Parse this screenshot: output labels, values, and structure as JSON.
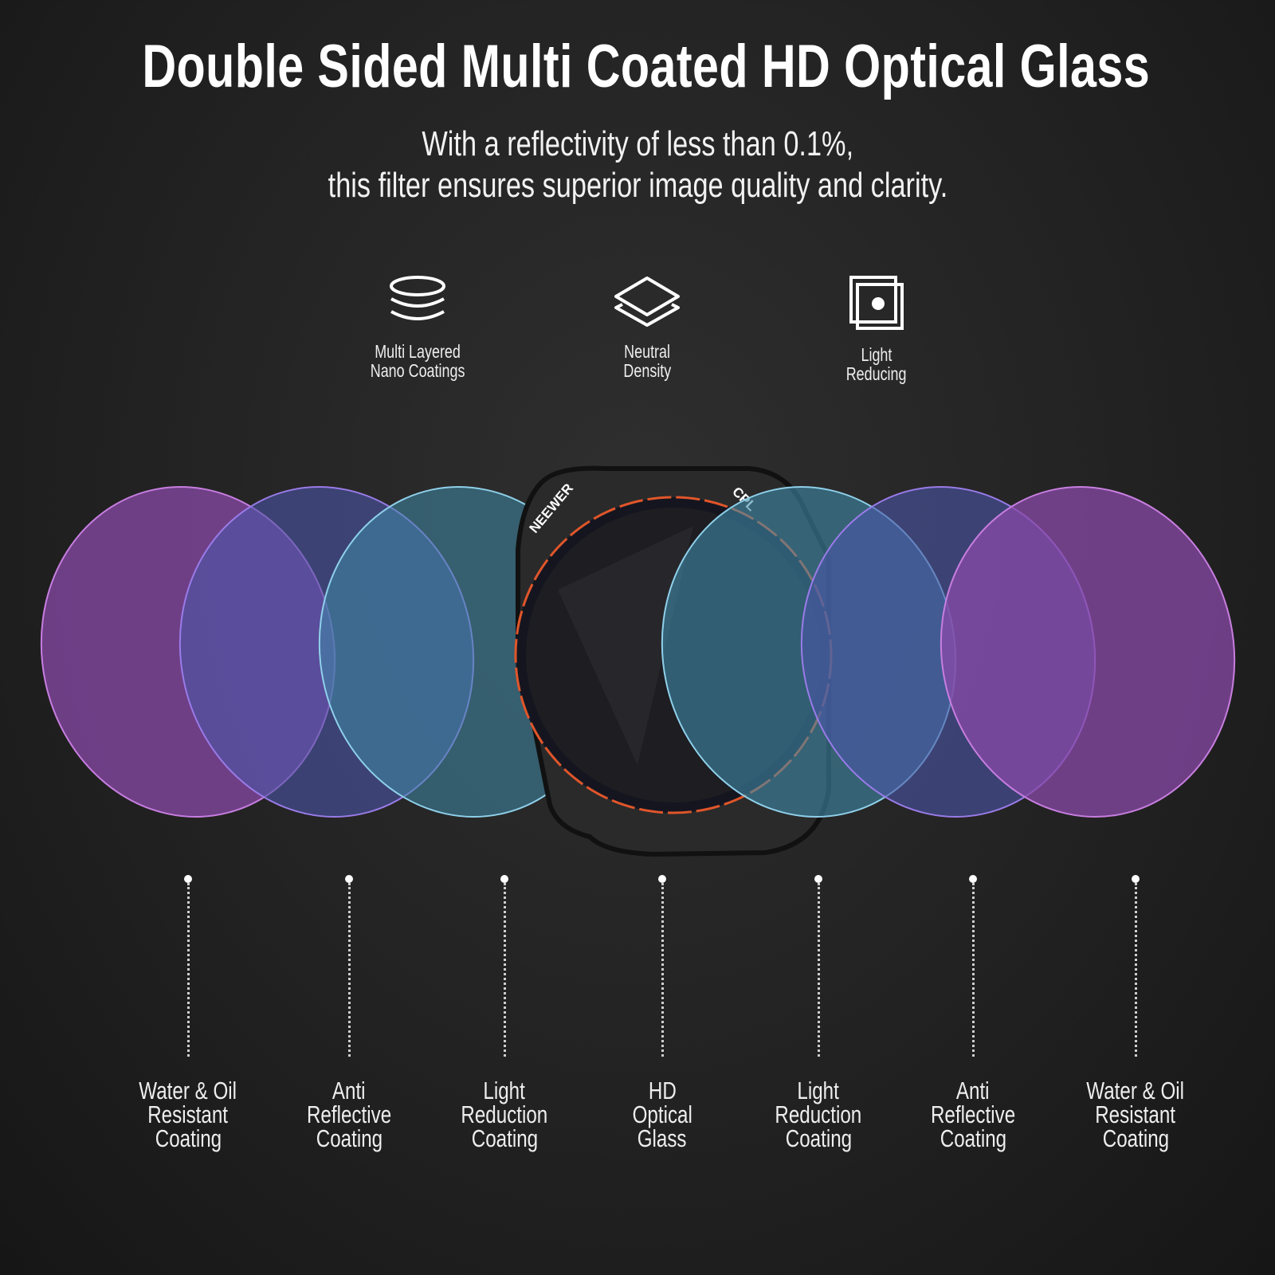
{
  "header": {
    "title": "Double Sided Multi Coated HD Optical Glass",
    "subtitle_line1": "With a reflectivity of less than 0.1%,",
    "subtitle_line2": "this filter ensures superior image quality and clarity."
  },
  "features": [
    {
      "icon": "stacked-discs-icon",
      "line1": "Multi Layered",
      "line2": "Nano Coatings"
    },
    {
      "icon": "layers-icon",
      "line1": "Neutral",
      "line2": "Density"
    },
    {
      "icon": "light-reducing-frames-icon",
      "line1": "Light",
      "line2": "Reducing"
    }
  ],
  "product": {
    "brand": "NEEWER",
    "filter_type": "CPL"
  },
  "colors": {
    "purple": "#8a4aa8",
    "blue": "#4b56a8",
    "teal": "#3f8aa8",
    "ring_accent": "#e0562a"
  },
  "layers": [
    {
      "line1": "Water & Oil",
      "line2": "Resistant",
      "line3": "Coating"
    },
    {
      "line1": "Anti",
      "line2": "Reflective",
      "line3": "Coating"
    },
    {
      "line1": "Light",
      "line2": "Reduction",
      "line3": "Coating"
    },
    {
      "line1": "HD",
      "line2": "Optical",
      "line3": "Glass"
    },
    {
      "line1": "Light",
      "line2": "Reduction",
      "line3": "Coating"
    },
    {
      "line1": "Anti",
      "line2": "Reflective",
      "line3": "Coating"
    },
    {
      "line1": "Water & Oil",
      "line2": "Resistant",
      "line3": "Coating"
    }
  ]
}
